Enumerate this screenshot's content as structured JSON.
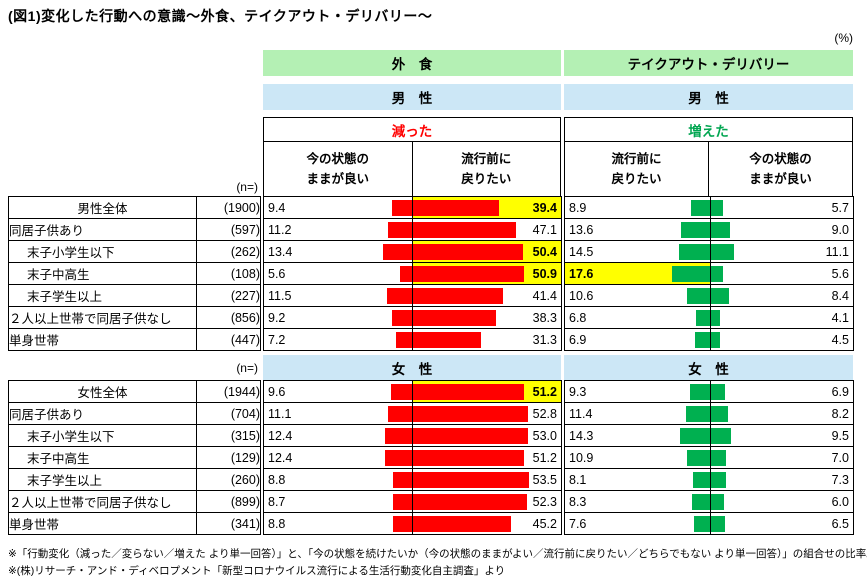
{
  "title": "(図1)変化した行動への意識～外食、テイクアウト・デリバリー～",
  "unit_label": "(%)",
  "n_label": "(n=)",
  "headers": {
    "gaishoku": "外　食",
    "takeout": "テイクアウト・デリバリー",
    "male": "男　性",
    "female": "女　性",
    "decreased": "減った",
    "increased": "増えた",
    "col_keep": "今の状態の\nままが良い",
    "col_return": "流行前に\n戻りたい"
  },
  "footnotes": [
    "※「行動変化（減った／変らない／増えた より単一回答）」と、「今の状態を続けたいか（今の状態のままがよい／流行前に戻りたい／どちらでもない より単一回答）」の組合せの比率。",
    "※(株)リサーチ・アンド・ディベロプメント「新型コロナウイルス流行による生活行動変化自主調査」より"
  ],
  "colors": {
    "header_green": "#b4f0b4",
    "header_blue": "#cce7f6",
    "bar_red": "#ff0000",
    "bar_green": "#00b050",
    "bar_green_text": "#00a550",
    "highlight": "#ffff00"
  },
  "chart_data": {
    "type": "bar",
    "unit": "%",
    "xlim": [
      0,
      68
    ],
    "columns": {
      "keep_out": "外食：今の状態のままが良い",
      "return_out": "外食：流行前に戻りたい",
      "return_td": "テイクアウト・デリバリー：流行前に戻りたい",
      "keep_td": "テイクアウト・デリバリー：今の状態のままが良い"
    },
    "male": {
      "gender_label": "男　性",
      "rows": [
        {
          "label": "男性全体",
          "n": "(1900)",
          "center": true,
          "keep_out": 9.4,
          "return_out": 39.4,
          "return_td": 8.9,
          "keep_td": 5.7,
          "highlight": [
            "return_out"
          ]
        },
        {
          "label": "同居子供あり",
          "n": "(597)",
          "keep_out": 11.2,
          "return_out": 47.1,
          "return_td": 13.6,
          "keep_td": 9.0
        },
        {
          "label": "末子小学生以下",
          "n": "(262)",
          "indent": true,
          "keep_out": 13.4,
          "return_out": 50.4,
          "return_td": 14.5,
          "keep_td": 11.1,
          "highlight": [
            "return_out"
          ]
        },
        {
          "label": "末子中高生",
          "n": "(108)",
          "indent": true,
          "keep_out": 5.6,
          "return_out": 50.9,
          "return_td": 17.6,
          "keep_td": 5.6,
          "highlight": [
            "return_out",
            "return_td"
          ]
        },
        {
          "label": "末子学生以上",
          "n": "(227)",
          "indent": true,
          "keep_out": 11.5,
          "return_out": 41.4,
          "return_td": 10.6,
          "keep_td": 8.4
        },
        {
          "label": "２人以上世帯で同居子供なし",
          "n": "(856)",
          "keep_out": 9.2,
          "return_out": 38.3,
          "return_td": 6.8,
          "keep_td": 4.1
        },
        {
          "label": "単身世帯",
          "n": "(447)",
          "keep_out": 7.2,
          "return_out": 31.3,
          "return_td": 6.9,
          "keep_td": 4.5
        }
      ]
    },
    "female": {
      "gender_label": "女　性",
      "rows": [
        {
          "label": "女性全体",
          "n": "(1944)",
          "center": true,
          "keep_out": 9.6,
          "return_out": 51.2,
          "return_td": 9.3,
          "keep_td": 6.9,
          "highlight": [
            "return_out"
          ]
        },
        {
          "label": "同居子供あり",
          "n": "(704)",
          "keep_out": 11.1,
          "return_out": 52.8,
          "return_td": 11.4,
          "keep_td": 8.2
        },
        {
          "label": "末子小学生以下",
          "n": "(315)",
          "indent": true,
          "keep_out": 12.4,
          "return_out": 53.0,
          "return_td": 14.3,
          "keep_td": 9.5
        },
        {
          "label": "末子中高生",
          "n": "(129)",
          "indent": true,
          "keep_out": 12.4,
          "return_out": 51.2,
          "return_td": 10.9,
          "keep_td": 7.0
        },
        {
          "label": "末子学生以上",
          "n": "(260)",
          "indent": true,
          "keep_out": 8.8,
          "return_out": 53.5,
          "return_td": 8.1,
          "keep_td": 7.3
        },
        {
          "label": "２人以上世帯で同居子供なし",
          "n": "(899)",
          "keep_out": 8.7,
          "return_out": 52.3,
          "return_td": 8.3,
          "keep_td": 6.0
        },
        {
          "label": "単身世帯",
          "n": "(341)",
          "keep_out": 8.8,
          "return_out": 45.2,
          "return_td": 7.6,
          "keep_td": 6.5
        }
      ]
    }
  }
}
